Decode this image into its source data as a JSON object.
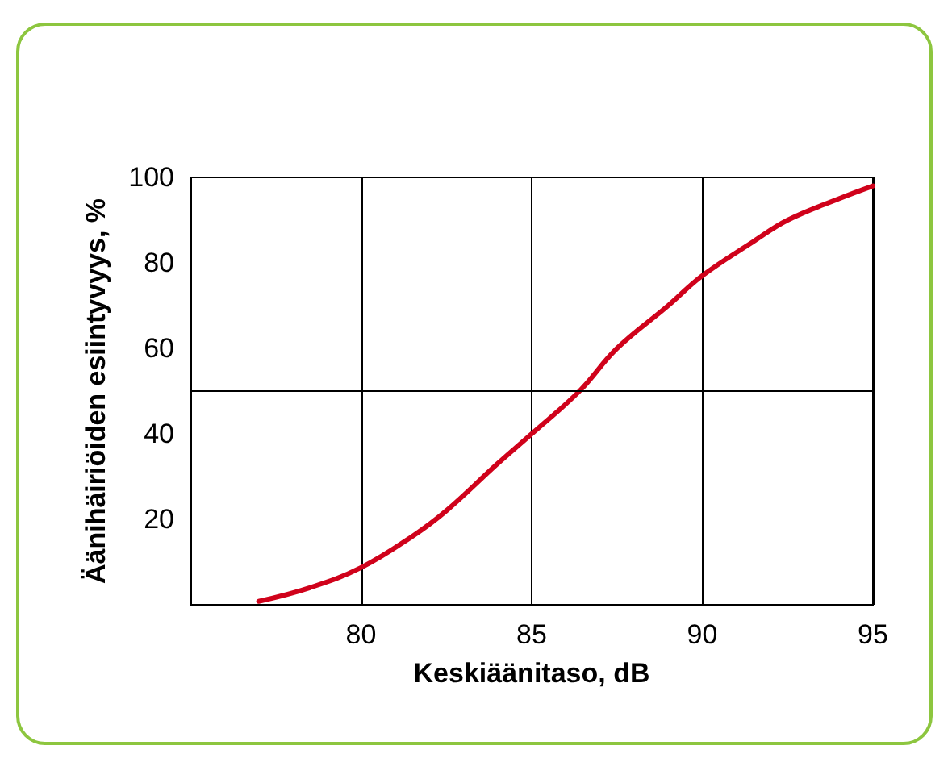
{
  "chart_data": {
    "type": "line",
    "xlabel": "Keskiäänitaso, dB",
    "ylabel": "Äänihäiriöiden esiintyvyys, %",
    "x": [
      77,
      78.5,
      80,
      81.5,
      82.5,
      84,
      85,
      86.4,
      87.5,
      89,
      90,
      91.5,
      92.5,
      94,
      95
    ],
    "series": [
      {
        "color": "#d0021b",
        "values": [
          0.8,
          4,
          8.7,
          16,
          22,
          33,
          40,
          50,
          60,
          70,
          77,
          85,
          90,
          95,
          98
        ]
      }
    ],
    "xlim": [
      75,
      95
    ],
    "xticks": [
      80,
      85,
      90,
      95
    ],
    "ylim": [
      0,
      100
    ],
    "yticks": [
      20,
      40,
      60,
      80,
      100
    ],
    "grid": "x",
    "marker": "none",
    "line_style": "solid",
    "ref_lines": [
      {
        "axis": "y",
        "value": 50,
        "color": "#000000",
        "line_style": "solid"
      }
    ]
  }
}
